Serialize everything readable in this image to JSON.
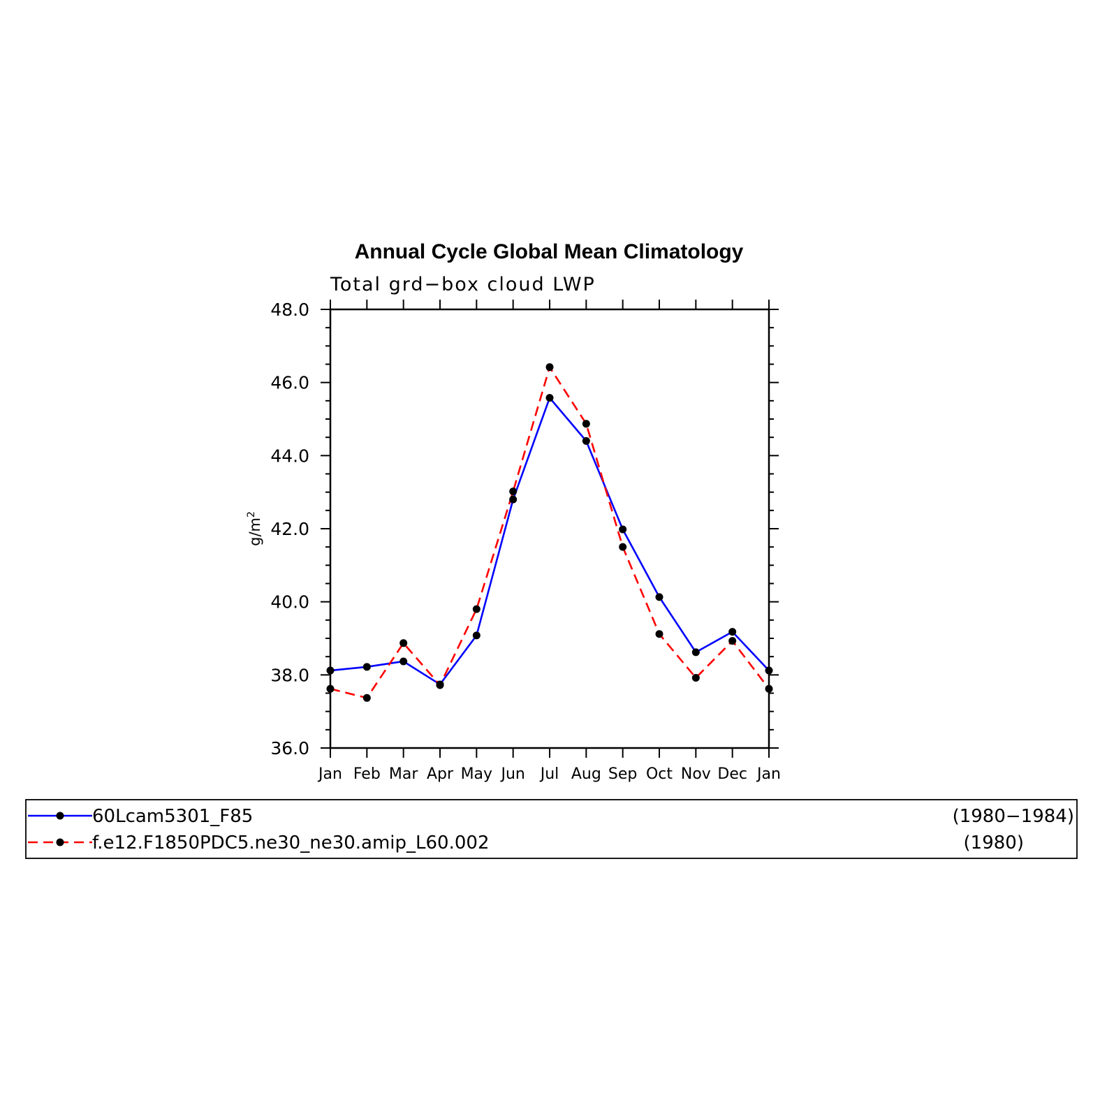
{
  "chart_data": {
    "type": "line",
    "title": "Annual Cycle Global Mean Climatology",
    "subtitle": "Total grd−box cloud LWP",
    "ylabel": "g/m",
    "ylabel_superscript": "2",
    "ylim": [
      36.0,
      48.0
    ],
    "yticks": [
      "36.0",
      "38.0",
      "40.0",
      "42.0",
      "44.0",
      "46.0",
      "48.0"
    ],
    "categories": [
      "Jan",
      "Feb",
      "Mar",
      "Apr",
      "May",
      "Jun",
      "Jul",
      "Aug",
      "Sep",
      "Oct",
      "Nov",
      "Dec",
      "Jan"
    ],
    "grid": false,
    "legend_position": "bottom",
    "series": [
      {
        "name": "60Lcam5301_F85",
        "period": "(1980−1984)",
        "color": "#0000ff",
        "style": "solid",
        "marker": "filled-circle",
        "values": [
          38.12,
          38.22,
          38.37,
          37.74,
          39.08,
          42.8,
          45.58,
          44.4,
          41.98,
          40.13,
          38.62,
          39.18,
          38.12
        ]
      },
      {
        "name": "f.e12.F1850PDC5.ne30_ne30.amip_L60.002",
        "period": "(1980)",
        "color": "#ff0000",
        "style": "dashed",
        "marker": "filled-circle",
        "values": [
          37.62,
          37.37,
          38.87,
          37.72,
          39.8,
          43.02,
          46.42,
          44.87,
          41.5,
          39.12,
          37.92,
          38.93,
          37.62
        ]
      }
    ]
  }
}
